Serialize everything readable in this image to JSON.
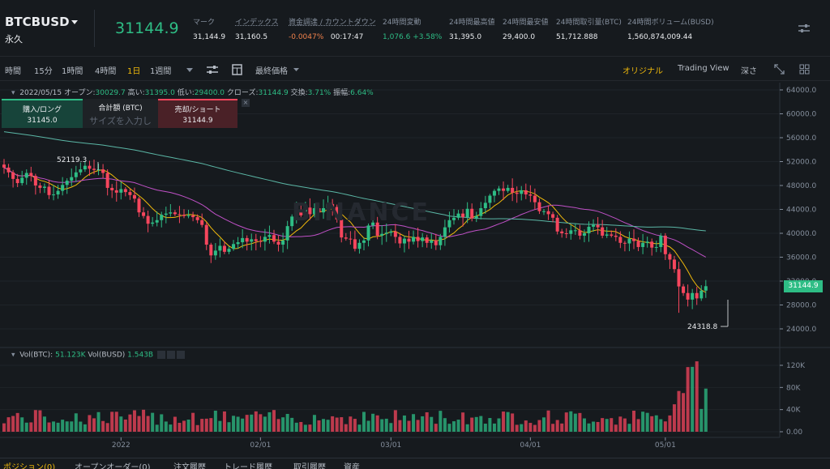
{
  "header": {
    "symbol": "BTCBUSD",
    "contract": "永久",
    "last_price": "31144.9",
    "stats": [
      {
        "label": "マーク",
        "value": "31,144.9"
      },
      {
        "label": "インデックス",
        "value": "31,160.5"
      },
      {
        "label": "資金調達 / カウントダウン",
        "value": "-0.0047%",
        "value2": "00:17:47"
      },
      {
        "label": "24時間変動",
        "value": "1,076.6 +3.58%"
      },
      {
        "label": "24時間最高値",
        "value": "31,395.0"
      },
      {
        "label": "24時間最安値",
        "value": "29,400.0"
      },
      {
        "label": "24時間取引量(BTC)",
        "value": "51,712.888"
      },
      {
        "label": "24時間ボリューム(BUSD)",
        "value": "1,560,874,009.44"
      }
    ]
  },
  "toolbar": {
    "intervals": [
      "時間",
      "15分",
      "1時間",
      "4時間",
      "1日",
      "1週間"
    ],
    "active_interval": "1日",
    "price_type": "最終価格",
    "views": [
      "オリジナル",
      "Trading View",
      "深さ"
    ],
    "active_view": "オリジナル"
  },
  "legend": {
    "date": "2022/05/15",
    "open_label": "オープン:",
    "open": "30029.7",
    "high_label": "高い:",
    "high": "31395.0",
    "low_label": "低い:",
    "low": "29400.0",
    "close_label": "クローズ:",
    "close": "31144.9",
    "change_label": "交換:",
    "change": "3.71%",
    "amp_label": "振幅:",
    "amp": "6.64%"
  },
  "order": {
    "buy_label": "購入/ロング",
    "buy_price": "31145.0",
    "total_label": "合計額 (BTC)",
    "size_placeholder": "サイズを入力し",
    "sell_label": "売却/ショート",
    "sell_price": "31144.9"
  },
  "volume_legend": {
    "btc_label": "Vol(BTC):",
    "btc": "51.123K",
    "busd_label": "Vol(BUSD)",
    "busd": "1.543B"
  },
  "annotations": {
    "high": "52119.3",
    "low": "24318.8"
  },
  "watermark": "BINANCE",
  "last_price_tag": "31144.9",
  "bottom_tabs": [
    "ポジション(0)",
    "オープンオーダー(0)",
    "注文履歴",
    "トレード履歴",
    "取引履歴",
    "資産"
  ],
  "colors": {
    "up": "#2ebd85",
    "down": "#f6465d",
    "accent": "#f0b90b",
    "ma7": "#f0b90b",
    "ma25": "#c051c7",
    "ma99": "#5bb7a6"
  },
  "chart_data": {
    "type": "candlestick",
    "price_axis": [
      "64000.0",
      "60000.0",
      "56000.0",
      "52000.0",
      "48000.0",
      "44000.0",
      "40000.0",
      "36000.0",
      "32000.0",
      "28000.0",
      "24000.0"
    ],
    "volume_axis": [
      "120K",
      "80K",
      "40K",
      "0.00"
    ],
    "time_axis": [
      "2022",
      "02/01",
      "03/01",
      "04/01",
      "05/01"
    ],
    "ohlc_closes": [
      51000,
      50200,
      49100,
      48400,
      49300,
      50100,
      49600,
      48000,
      47600,
      47800,
      46400,
      46500,
      47100,
      48100,
      48800,
      49400,
      50200,
      50700,
      51300,
      50800,
      50600,
      50700,
      50100,
      47600,
      47200,
      46800,
      47400,
      46900,
      46400,
      45800,
      43500,
      42900,
      41600,
      41800,
      42200,
      43100,
      43300,
      43500,
      43200,
      43100,
      42900,
      43000,
      42700,
      42200,
      41400,
      38100,
      36300,
      37100,
      37900,
      36900,
      37400,
      38200,
      38500,
      39200,
      38600,
      39000,
      38700,
      38600,
      39400,
      39700,
      38600,
      38100,
      38800,
      41200,
      42800,
      43700,
      43000,
      44300,
      43200,
      44200,
      43500,
      44200,
      44900,
      44400,
      42300,
      39300,
      39100,
      39000,
      37400,
      38400,
      38800,
      41300,
      41800,
      39600,
      39900,
      40100,
      40300,
      39400,
      38300,
      39100,
      38600,
      39400,
      38700,
      39300,
      38400,
      38800,
      38000,
      39400,
      41000,
      42200,
      42600,
      43300,
      42700,
      44100,
      42500,
      42900,
      44200,
      45100,
      46300,
      47100,
      47500,
      47100,
      47600,
      46800,
      46600,
      47200,
      46500,
      46300,
      45200,
      43700,
      43700,
      43200,
      42600,
      40300,
      40000,
      39900,
      40500,
      40500,
      39600,
      40000,
      41100,
      41400,
      41000,
      39600,
      39800,
      39600,
      39400,
      38400,
      38300,
      39100,
      38700,
      37700,
      38400,
      38600,
      37600,
      37700,
      39600,
      36500,
      35600,
      34000,
      31100,
      30000,
      28900,
      30000,
      29100,
      30400,
      31145
    ]
  }
}
